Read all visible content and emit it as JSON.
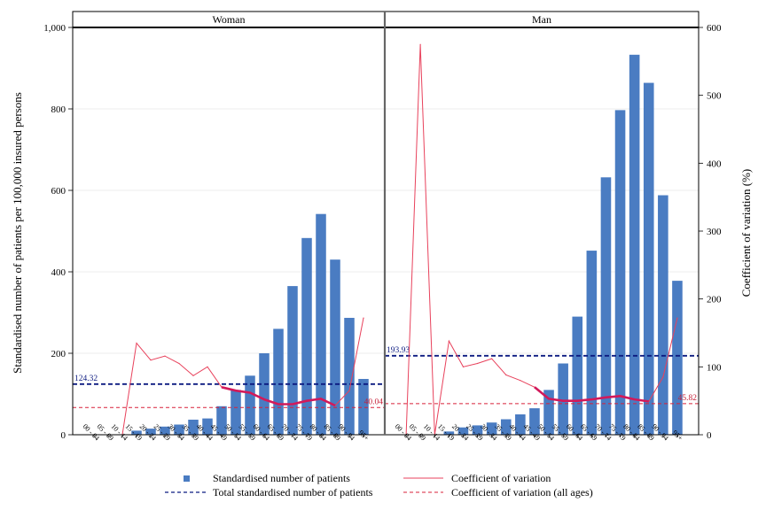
{
  "chart_data": {
    "type": "bar",
    "categories": [
      "00-04",
      "05-09",
      "10-14",
      "15-19",
      "20-24",
      "25-29",
      "30-34",
      "35-39",
      "40-44",
      "45-49",
      "50-54",
      "55-59",
      "60-64",
      "65-69",
      "70-74",
      "75-79",
      "80-84",
      "85-89",
      "90-94",
      "95+"
    ],
    "category_labels": [
      "00 - 04",
      "05 - 09",
      "10 - 14",
      "15 - 19",
      "20 - 24",
      "25 - 29",
      "30 - 34",
      "35 - 39",
      "40 - 44",
      "45 - 49",
      "50 - 54",
      "55 - 59",
      "60 - 64",
      "65 - 69",
      "70 - 74",
      "75 - 79",
      "80 - 84",
      "85 - 89",
      "90 - 94",
      "95+"
    ],
    "ylabel": "Standardised number of patients per 100,000 insured persons",
    "y2label": "Coefficient of variation (%)",
    "ylim": [
      0,
      1000
    ],
    "y2lim": [
      0,
      600
    ],
    "yticks": [
      0,
      200,
      400,
      600,
      800,
      1000
    ],
    "yticklabels": [
      "0",
      "200",
      "400",
      "600",
      "800",
      "1,000"
    ],
    "y2ticks": [
      0,
      100,
      200,
      300,
      400,
      500,
      600
    ],
    "y2ticklabels": [
      "0",
      "100",
      "200",
      "300",
      "400",
      "500",
      "600"
    ],
    "grid": "horizontal",
    "legend_position": "bottom",
    "panels": [
      {
        "title": "Woman",
        "values": [
          0,
          0,
          0,
          10,
          15,
          20,
          25,
          37,
          40,
          70,
          110,
          145,
          200,
          260,
          365,
          483,
          542,
          430,
          287,
          137
        ],
        "cv": [
          0,
          0,
          0,
          135,
          110,
          116,
          105,
          87,
          100,
          70,
          65,
          62,
          52,
          45,
          45,
          50,
          53,
          43,
          65,
          172
        ],
        "cv_start_index": 2,
        "cv_bold_range": [
          9,
          17
        ],
        "total": 124.32,
        "total_label": "124.32",
        "cv_all": 40.04,
        "cv_all_label": "40.04"
      },
      {
        "title": "Man",
        "values": [
          0,
          0,
          0,
          8,
          18,
          23,
          30,
          38,
          50,
          65,
          110,
          175,
          290,
          452,
          632,
          797,
          933,
          864,
          588,
          378
        ],
        "cv": [
          0,
          575,
          0,
          138,
          100,
          105,
          112,
          88,
          80,
          70,
          53,
          50,
          50,
          52,
          55,
          57,
          52,
          49,
          85,
          172
        ],
        "cv_start_index": 0,
        "cv_bold_range": [
          9,
          17
        ],
        "total": 193.93,
        "total_label": "193.93",
        "cv_all": 45.82,
        "cv_all_label": "45.82"
      }
    ],
    "legend": [
      {
        "label": "Standardised number of patients",
        "style": "bar"
      },
      {
        "label": "Coefficient of variation",
        "style": "line"
      },
      {
        "label": "Total standardised number of patients",
        "style": "navy-dash"
      },
      {
        "label": "Coefficient of variation (all ages)",
        "style": "red-dash"
      }
    ],
    "colors": {
      "bar": "#4a7cc2",
      "cv_line": "#e8425c",
      "cv_bold": "#d2195a",
      "total_line": "#0b1a80",
      "cv_all_line": "#d8203a",
      "total_label": "#0b1a80",
      "cv_all_label": "#c51e36"
    }
  }
}
